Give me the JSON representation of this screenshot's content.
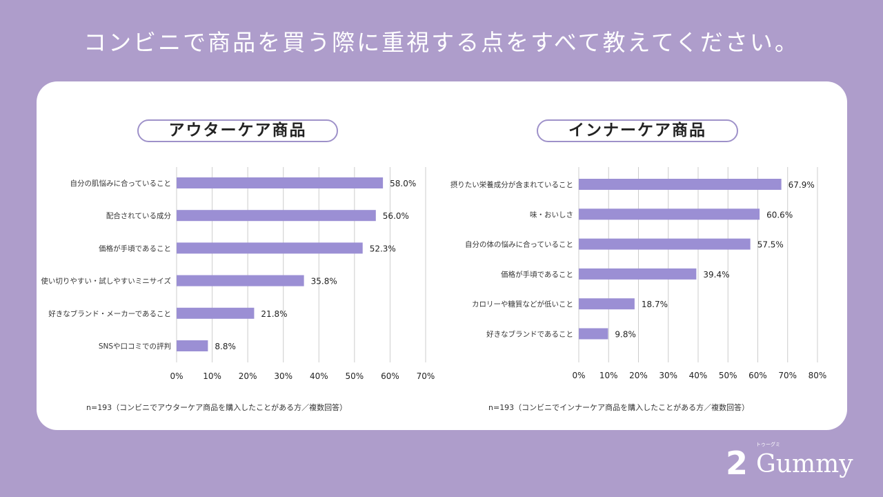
{
  "title": "コンビニで商品を買う際に重視する点をすべて教えてください。",
  "logo": {
    "text": "2Gummy",
    "kana": "トゥーグミ"
  },
  "colors": {
    "bar": "#9b8fd4",
    "background": "#ae9dcb",
    "grid": "#cccccc"
  },
  "chart_data": [
    {
      "type": "bar",
      "orientation": "horizontal",
      "title": "アウターケア商品",
      "categories": [
        "自分の肌悩みに合っていること",
        "配合されている成分",
        "価格が手頃であること",
        "使い切りやすい・試しやすいミニサイズ",
        "好きなブランド・メーカーであること",
        "SNSや口コミでの評判"
      ],
      "values": [
        58.0,
        56.0,
        52.3,
        35.8,
        21.8,
        8.8
      ],
      "data_labels": [
        "58.0%",
        "56.0%",
        "52.3%",
        "35.8%",
        "21.8%",
        "8.8%"
      ],
      "xlim": [
        0,
        70
      ],
      "ticks": [
        "0%",
        "10%",
        "20%",
        "30%",
        "40%",
        "50%",
        "60%",
        "70%"
      ],
      "grid": true,
      "note": "n=193（コンビニでアウターケア商品を購入したことがある方／複数回答）"
    },
    {
      "type": "bar",
      "orientation": "horizontal",
      "title": "インナーケア商品",
      "categories": [
        "摂りたい栄養成分が含まれていること",
        "味・おいしさ",
        "自分の体の悩みに合っていること",
        "価格が手頃であること",
        "カロリーや糖質などが低いこと",
        "好きなブランドであること"
      ],
      "values": [
        67.9,
        60.6,
        57.5,
        39.4,
        18.7,
        9.8
      ],
      "data_labels": [
        "67.9%",
        "60.6%",
        "57.5%",
        "39.4%",
        "18.7%",
        "9.8%"
      ],
      "xlim": [
        0,
        80
      ],
      "ticks": [
        "0%",
        "10%",
        "20%",
        "30%",
        "40%",
        "50%",
        "60%",
        "70%",
        "80%"
      ],
      "grid": true,
      "note": "n=193（コンビニでインナーケア商品を購入したことがある方／複数回答）"
    }
  ]
}
